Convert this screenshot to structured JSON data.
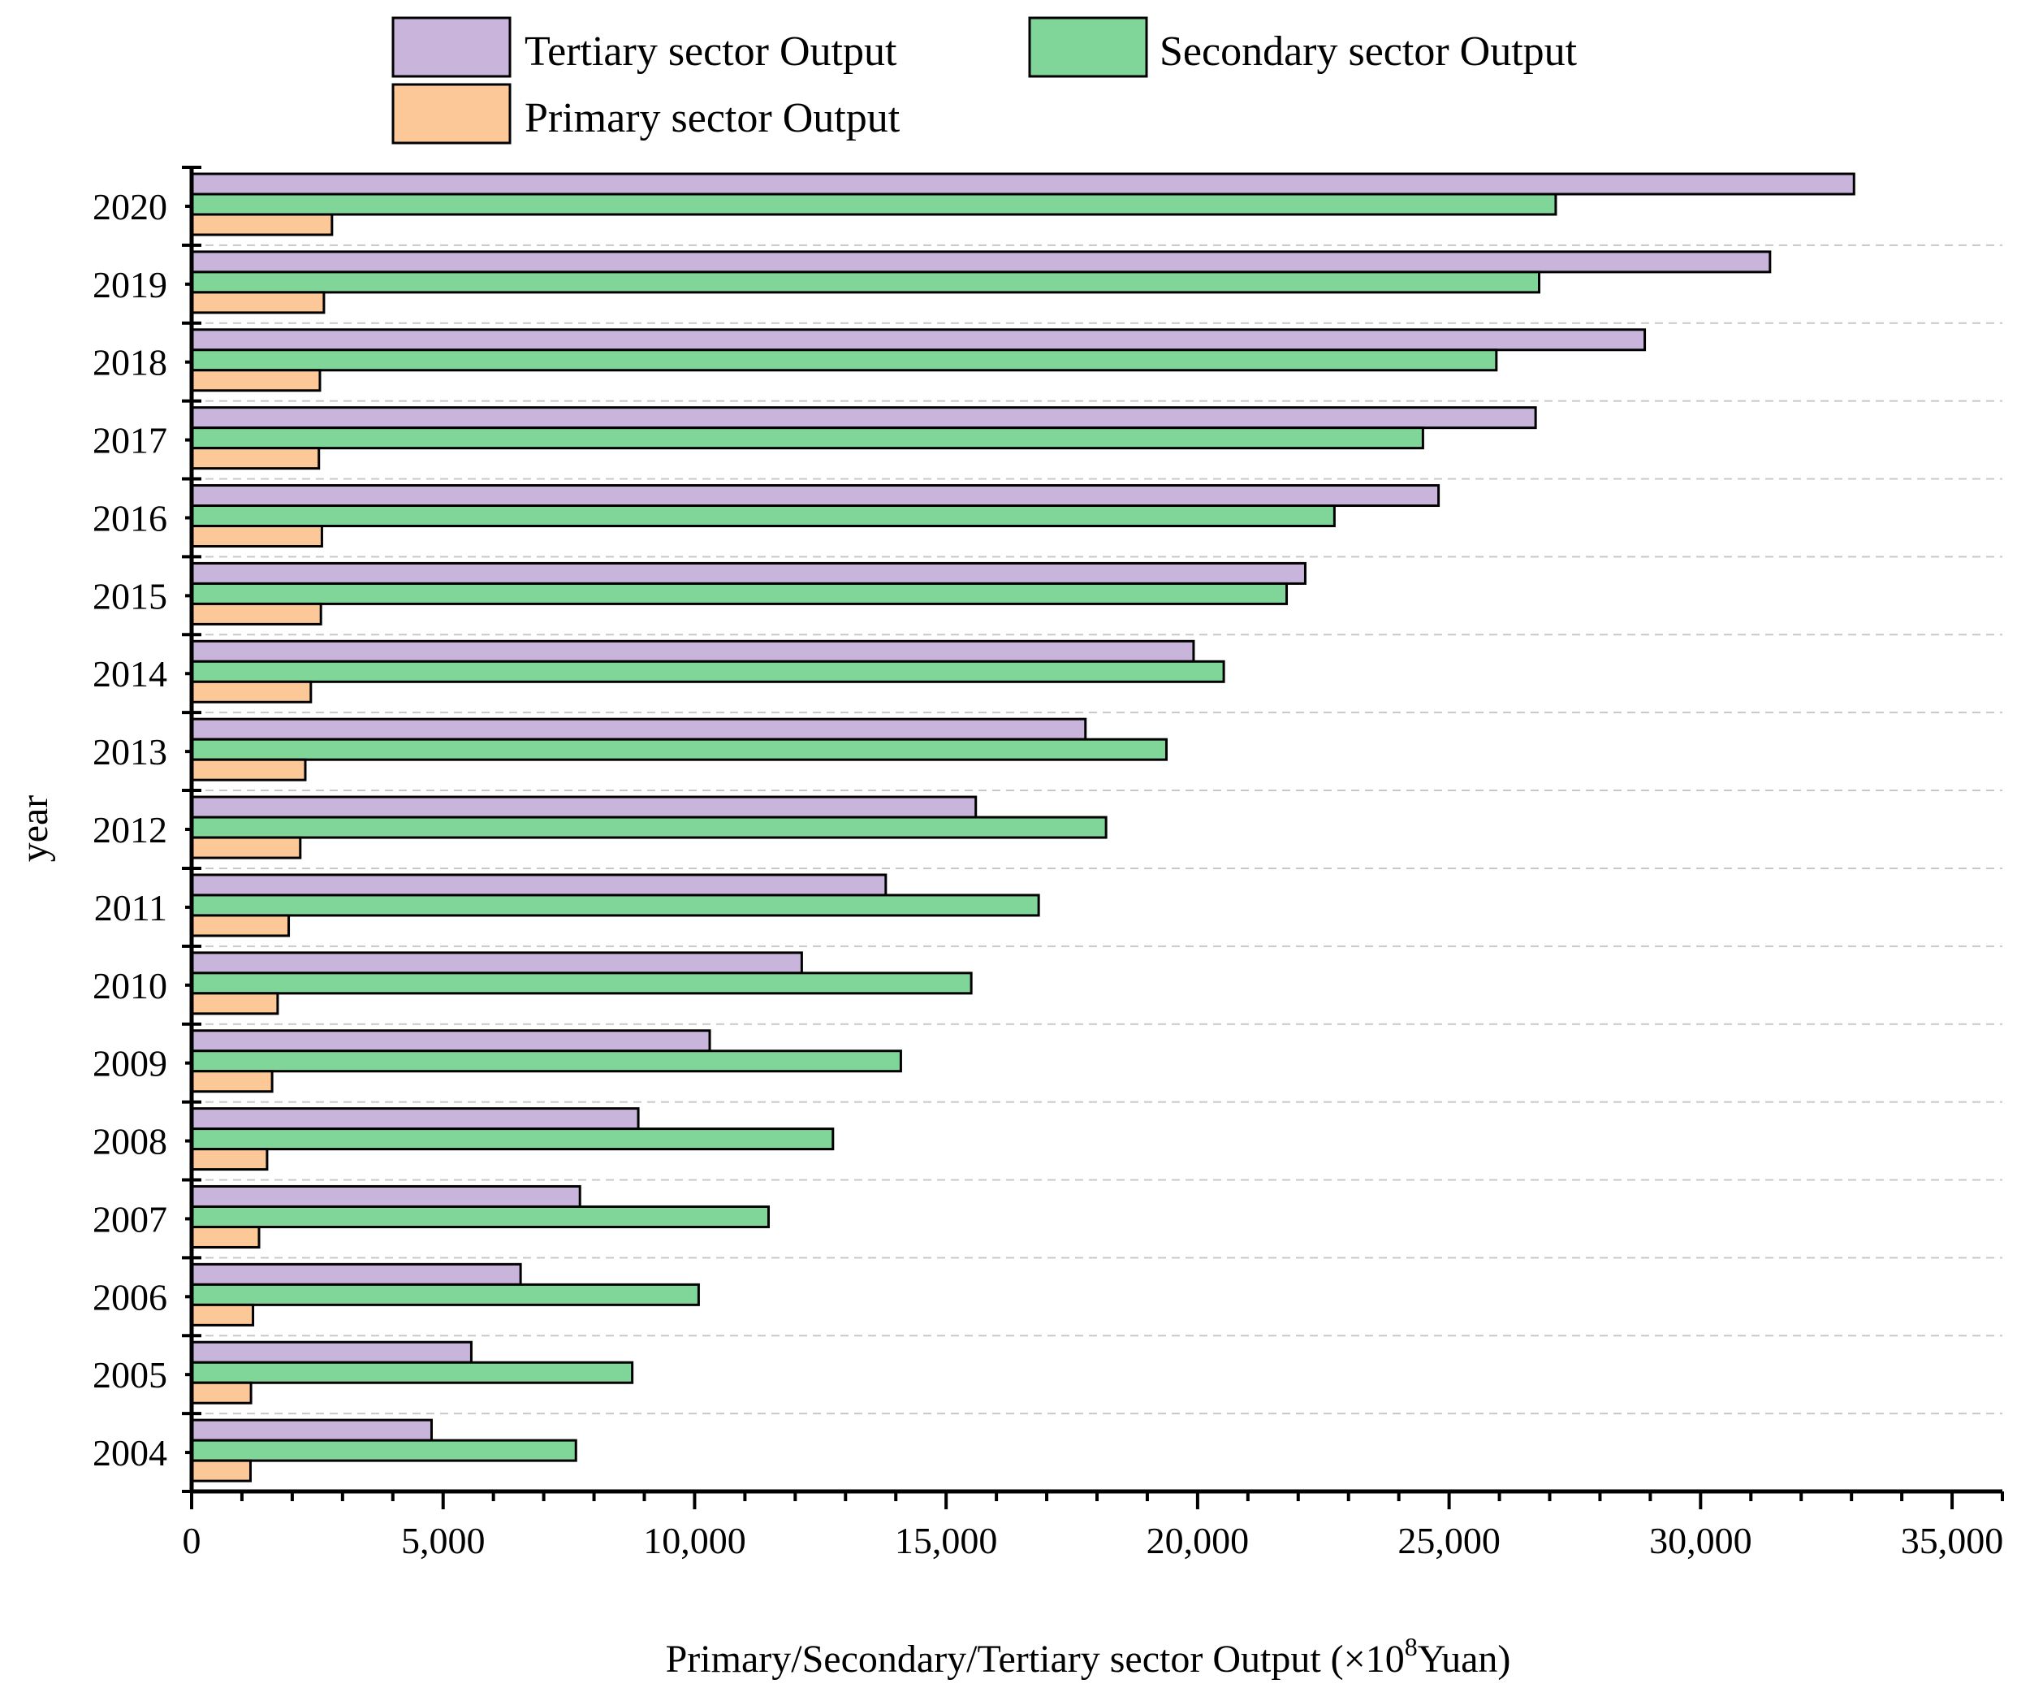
{
  "chart_data": {
    "type": "bar",
    "orientation": "horizontal",
    "title": "",
    "xlabel": "Primary/Secondary/Tertiary sector Output (×10",
    "xlabel_superscript": "8",
    "xlabel_suffix": "Yuan)",
    "ylabel": "year",
    "xlim": [
      0,
      36000
    ],
    "xticks": [
      0,
      5000,
      10000,
      15000,
      20000,
      25000,
      30000,
      35000
    ],
    "xtick_labels": [
      "0",
      "5,000",
      "10,000",
      "15,000",
      "20,000",
      "25,000",
      "30,000",
      "35,000"
    ],
    "categories": [
      "2020",
      "2019",
      "2018",
      "2017",
      "2016",
      "2015",
      "2014",
      "2013",
      "2012",
      "2011",
      "2010",
      "2009",
      "2008",
      "2007",
      "2006",
      "2005",
      "2004"
    ],
    "grid": true,
    "legend_position": "top",
    "series": [
      {
        "name": "Tertiary sector Output",
        "color": "#c9b4dc",
        "values": [
          33050,
          31380,
          28890,
          26720,
          24790,
          22140,
          19920,
          17770,
          15590,
          13800,
          12130,
          10300,
          8880,
          7720,
          6540,
          5560,
          4770
        ]
      },
      {
        "name": "Secondary sector Output",
        "color": "#80d698",
        "values": [
          27120,
          26790,
          25940,
          24480,
          22720,
          21770,
          20520,
          19380,
          18180,
          16840,
          15500,
          14100,
          12750,
          11470,
          10080,
          8760,
          7640
        ]
      },
      {
        "name": "Primary sector Output",
        "color": "#fcc898",
        "values": [
          2790,
          2630,
          2550,
          2530,
          2590,
          2570,
          2370,
          2260,
          2160,
          1930,
          1710,
          1600,
          1500,
          1340,
          1220,
          1180,
          1170
        ]
      }
    ]
  }
}
